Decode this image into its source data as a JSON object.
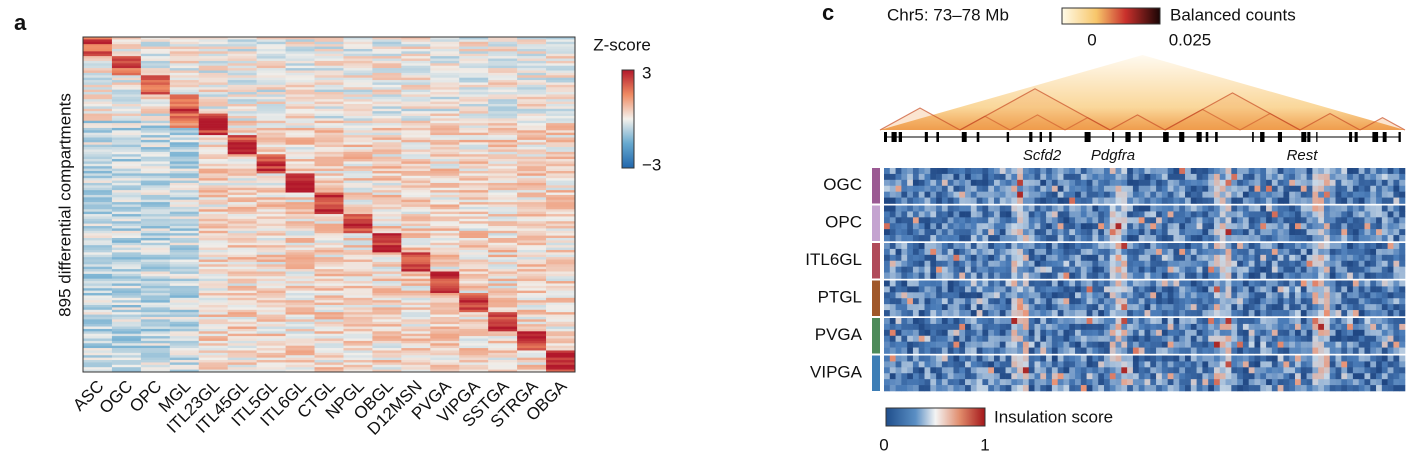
{
  "panel_a": {
    "label": "a",
    "y_label": "895 differential compartments",
    "colorbar_title": "Z-score",
    "colorbar_ticks": [
      "3",
      "−3"
    ],
    "columns": [
      "ASC",
      "OGC",
      "OPC",
      "MGL",
      "ITL23GL",
      "ITL45GL",
      "ITL5GL",
      "ITL6GL",
      "CTGL",
      "NPGL",
      "OBGL",
      "D12MSN",
      "PVGA",
      "VIPGA",
      "SSTGA",
      "STRGA",
      "OBGA"
    ]
  },
  "panel_c": {
    "label": "c",
    "region": "Chr5: 73–78 Mb",
    "counts_title": "Balanced counts",
    "counts_ticks": [
      "0",
      "0.025"
    ],
    "genes": [
      "Scfd2",
      "Pdgfra",
      "Rest"
    ],
    "rows": [
      "OGC",
      "OPC",
      "ITL6GL",
      "PTGL",
      "PVGA",
      "VIPGA"
    ],
    "insulation_title": "Insulation score",
    "insulation_ticks": [
      "0",
      "1"
    ]
  }
}
